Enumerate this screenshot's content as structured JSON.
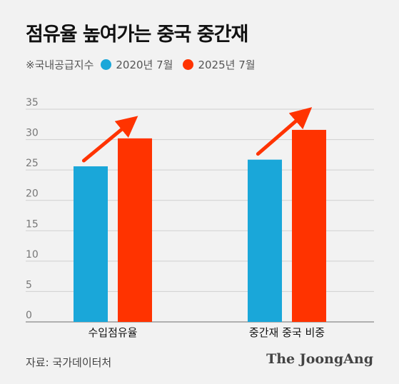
{
  "title": "점유율 높여가는 중국 중간재",
  "legend": {
    "note": "※국내공급지수",
    "items": [
      {
        "label": "2020년 7월",
        "color": "#1aa7d9"
      },
      {
        "label": "2025년 7월",
        "color": "#ff3300"
      }
    ]
  },
  "source": "자료: 국가데이터처",
  "brand": "The JoongAng",
  "colors": {
    "axis": "#9a9a9a",
    "grid": "#cfcfcf",
    "tick": "#777777",
    "arrow": "#ff3300"
  },
  "chart_data": {
    "type": "bar",
    "categories": [
      "수입점유율",
      "중간재 중국 비중"
    ],
    "series": [
      {
        "name": "2020년 7월",
        "values": [
          25.6,
          26.7
        ]
      },
      {
        "name": "2025년 7월",
        "values": [
          30.2,
          31.6
        ]
      }
    ],
    "ylim": [
      0,
      35
    ],
    "yticks": [
      "0",
      "5",
      "10",
      "15",
      "20",
      "25",
      "30",
      "35"
    ],
    "grid": true
  }
}
